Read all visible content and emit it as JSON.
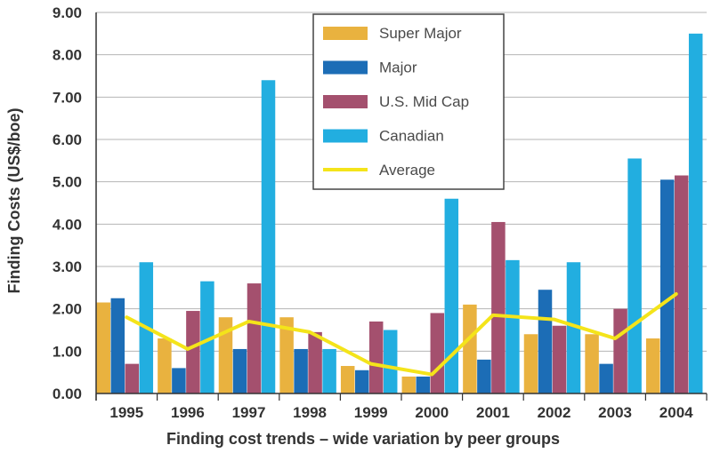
{
  "chart_data": {
    "type": "bar",
    "categories": [
      "1995",
      "1996",
      "1997",
      "1998",
      "1999",
      "2000",
      "2001",
      "2002",
      "2003",
      "2004"
    ],
    "series": [
      {
        "name": "Super Major",
        "kind": "bar",
        "color": "#E9B23F",
        "values": [
          2.15,
          1.3,
          1.8,
          1.8,
          0.65,
          0.4,
          2.1,
          1.4,
          1.4,
          1.3
        ]
      },
      {
        "name": "Major",
        "kind": "bar",
        "color": "#1C6DB6",
        "values": [
          2.25,
          0.6,
          1.05,
          1.05,
          0.55,
          0.4,
          0.8,
          2.45,
          0.7,
          5.05
        ]
      },
      {
        "name": "U.S. Mid Cap",
        "kind": "bar",
        "color": "#A4506E",
        "values": [
          0.7,
          1.95,
          2.6,
          1.45,
          1.7,
          1.9,
          4.05,
          1.6,
          2.0,
          5.15
        ]
      },
      {
        "name": "Canadian",
        "kind": "bar",
        "color": "#22AEE0",
        "values": [
          3.1,
          2.65,
          7.4,
          1.05,
          1.5,
          4.6,
          3.15,
          3.1,
          5.55,
          8.5
        ]
      },
      {
        "name": "Average",
        "kind": "line",
        "color": "#F4E41A",
        "values": [
          1.8,
          1.05,
          1.7,
          1.45,
          0.7,
          0.45,
          1.85,
          1.75,
          1.3,
          2.35
        ]
      }
    ],
    "ylim": [
      0,
      9
    ],
    "yticks": [
      "0.00",
      "1.00",
      "2.00",
      "3.00",
      "4.00",
      "5.00",
      "6.00",
      "7.00",
      "8.00",
      "9.00"
    ],
    "ylabel": "Finding Costs (US$/boe)",
    "xlabel": "Finding cost trends – wide variation by peer groups",
    "title": "",
    "grid": "horizontal",
    "legend": "top-center"
  }
}
